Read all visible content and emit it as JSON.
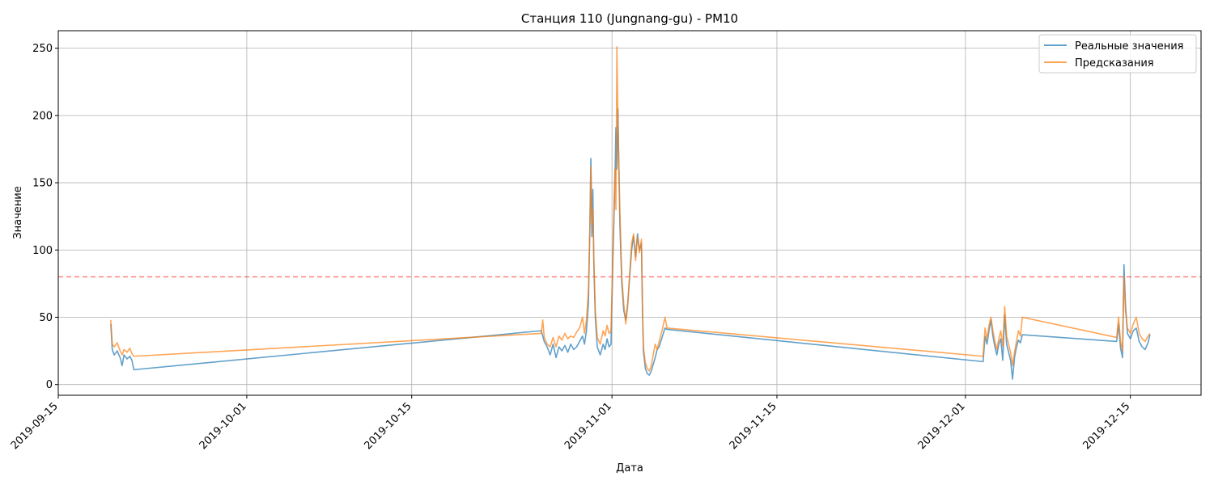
{
  "chart_data": {
    "type": "line",
    "title": "Станция 110 (Jungnang-gu) - PM10",
    "xlabel": "Дата",
    "ylabel": "Значение",
    "xlim": [
      "2019-09-15",
      "2019-12-21"
    ],
    "ylim": [
      -8,
      263
    ],
    "grid": true,
    "legend_position": "top-right",
    "x_ticks": [
      "2019-09-15",
      "2019-10-01",
      "2019-10-15",
      "2019-11-01",
      "2019-11-15",
      "2019-12-01",
      "2019-12-15"
    ],
    "y_ticks": [
      0,
      50,
      100,
      150,
      200,
      250
    ],
    "threshold": {
      "value": 80,
      "color": "#ff0000",
      "style": "dashed"
    },
    "series": [
      {
        "name": "Реальные значения",
        "color": "#1f77b4",
        "points": [
          [
            "2019-09-19T11:00",
            45
          ],
          [
            "2019-09-19T14:00",
            26
          ],
          [
            "2019-09-19T18:00",
            22
          ],
          [
            "2019-09-20T00:00",
            25
          ],
          [
            "2019-09-20T06:00",
            20
          ],
          [
            "2019-09-20T10:00",
            14
          ],
          [
            "2019-09-20T14:00",
            22
          ],
          [
            "2019-09-20T20:00",
            19
          ],
          [
            "2019-09-21T02:00",
            21
          ],
          [
            "2019-09-21T06:00",
            18
          ],
          [
            "2019-09-21T10:00",
            11
          ],
          [
            "2019-10-26T00:00",
            40
          ],
          [
            "2019-10-26T06:00",
            32
          ],
          [
            "2019-10-26T12:00",
            28
          ],
          [
            "2019-10-26T18:00",
            22
          ],
          [
            "2019-10-27T00:00",
            30
          ],
          [
            "2019-10-27T06:00",
            20
          ],
          [
            "2019-10-27T12:00",
            28
          ],
          [
            "2019-10-27T18:00",
            25
          ],
          [
            "2019-10-28T00:00",
            29
          ],
          [
            "2019-10-28T06:00",
            24
          ],
          [
            "2019-10-28T12:00",
            30
          ],
          [
            "2019-10-28T18:00",
            26
          ],
          [
            "2019-10-29T00:00",
            28
          ],
          [
            "2019-10-29T06:00",
            32
          ],
          [
            "2019-10-29T12:00",
            36
          ],
          [
            "2019-10-29T16:00",
            30
          ],
          [
            "2019-10-29T20:00",
            40
          ],
          [
            "2019-10-30T00:00",
            60
          ],
          [
            "2019-10-30T03:00",
            120
          ],
          [
            "2019-10-30T05:00",
            168
          ],
          [
            "2019-10-30T07:00",
            110
          ],
          [
            "2019-10-30T09:00",
            145
          ],
          [
            "2019-10-30T11:00",
            90
          ],
          [
            "2019-10-30T14:00",
            50
          ],
          [
            "2019-10-30T18:00",
            28
          ],
          [
            "2019-10-31T00:00",
            22
          ],
          [
            "2019-10-31T06:00",
            30
          ],
          [
            "2019-10-31T10:00",
            26
          ],
          [
            "2019-10-31T14:00",
            34
          ],
          [
            "2019-10-31T18:00",
            28
          ],
          [
            "2019-10-31T22:00",
            30
          ],
          [
            "2019-11-01T02:00",
            95
          ],
          [
            "2019-11-01T06:00",
            150
          ],
          [
            "2019-11-01T08:00",
            191
          ],
          [
            "2019-11-01T10:00",
            160
          ],
          [
            "2019-11-01T12:00",
            205
          ],
          [
            "2019-11-01T16:00",
            120
          ],
          [
            "2019-11-01T20:00",
            75
          ],
          [
            "2019-11-02T00:00",
            55
          ],
          [
            "2019-11-02T04:00",
            48
          ],
          [
            "2019-11-02T08:00",
            60
          ],
          [
            "2019-11-02T12:00",
            80
          ],
          [
            "2019-11-02T16:00",
            100
          ],
          [
            "2019-11-02T20:00",
            110
          ],
          [
            "2019-11-03T00:00",
            95
          ],
          [
            "2019-11-03T04:00",
            112
          ],
          [
            "2019-11-03T08:00",
            100
          ],
          [
            "2019-11-03T12:00",
            105
          ],
          [
            "2019-11-03T14:00",
            60
          ],
          [
            "2019-11-03T16:00",
            25
          ],
          [
            "2019-11-03T20:00",
            12
          ],
          [
            "2019-11-04T00:00",
            8
          ],
          [
            "2019-11-04T04:00",
            7
          ],
          [
            "2019-11-04T08:00",
            10
          ],
          [
            "2019-11-04T12:00",
            15
          ],
          [
            "2019-11-04T16:00",
            20
          ],
          [
            "2019-11-04T20:00",
            26
          ],
          [
            "2019-11-05T00:00",
            28
          ],
          [
            "2019-11-05T06:00",
            35
          ],
          [
            "2019-11-05T12:00",
            42
          ],
          [
            "2019-11-05T16:00",
            41
          ],
          [
            "2019-12-02T12:00",
            17
          ],
          [
            "2019-12-02T16:00",
            36
          ],
          [
            "2019-12-02T20:00",
            30
          ],
          [
            "2019-12-03T00:00",
            40
          ],
          [
            "2019-12-03T04:00",
            48
          ],
          [
            "2019-12-03T08:00",
            36
          ],
          [
            "2019-12-03T12:00",
            28
          ],
          [
            "2019-12-03T16:00",
            22
          ],
          [
            "2019-12-03T20:00",
            30
          ],
          [
            "2019-12-04T00:00",
            34
          ],
          [
            "2019-12-04T04:00",
            18
          ],
          [
            "2019-12-04T08:00",
            52
          ],
          [
            "2019-12-04T12:00",
            30
          ],
          [
            "2019-12-04T16:00",
            24
          ],
          [
            "2019-12-04T20:00",
            18
          ],
          [
            "2019-12-05T00:00",
            4
          ],
          [
            "2019-12-05T04:00",
            20
          ],
          [
            "2019-12-05T08:00",
            28
          ],
          [
            "2019-12-05T12:00",
            33
          ],
          [
            "2019-12-05T16:00",
            31
          ],
          [
            "2019-12-05T20:00",
            37
          ],
          [
            "2019-12-13T20:00",
            32
          ],
          [
            "2019-12-14T00:00",
            45
          ],
          [
            "2019-12-14T04:00",
            27
          ],
          [
            "2019-12-14T08:00",
            20
          ],
          [
            "2019-12-14T11:00",
            89
          ],
          [
            "2019-12-14T14:00",
            60
          ],
          [
            "2019-12-14T18:00",
            38
          ],
          [
            "2019-12-15T00:00",
            34
          ],
          [
            "2019-12-15T06:00",
            40
          ],
          [
            "2019-12-15T12:00",
            42
          ],
          [
            "2019-12-15T18:00",
            32
          ],
          [
            "2019-12-16T00:00",
            28
          ],
          [
            "2019-12-16T06:00",
            26
          ],
          [
            "2019-12-16T12:00",
            31
          ],
          [
            "2019-12-16T16:00",
            37
          ]
        ]
      },
      {
        "name": "Предсказания",
        "color": "#ff7f0e",
        "points": [
          [
            "2019-09-19T11:00",
            48
          ],
          [
            "2019-09-19T14:00",
            30
          ],
          [
            "2019-09-19T18:00",
            28
          ],
          [
            "2019-09-20T00:00",
            31
          ],
          [
            "2019-09-20T06:00",
            25
          ],
          [
            "2019-09-20T10:00",
            22
          ],
          [
            "2019-09-20T14:00",
            26
          ],
          [
            "2019-09-20T20:00",
            24
          ],
          [
            "2019-09-21T02:00",
            27
          ],
          [
            "2019-09-21T06:00",
            23
          ],
          [
            "2019-09-21T10:00",
            21
          ],
          [
            "2019-10-26T00:00",
            38
          ],
          [
            "2019-10-26T03:00",
            48
          ],
          [
            "2019-10-26T06:00",
            35
          ],
          [
            "2019-10-26T12:00",
            30
          ],
          [
            "2019-10-26T18:00",
            28
          ],
          [
            "2019-10-27T00:00",
            35
          ],
          [
            "2019-10-27T06:00",
            28
          ],
          [
            "2019-10-27T12:00",
            36
          ],
          [
            "2019-10-27T18:00",
            33
          ],
          [
            "2019-10-28T00:00",
            38
          ],
          [
            "2019-10-28T06:00",
            34
          ],
          [
            "2019-10-28T12:00",
            36
          ],
          [
            "2019-10-28T18:00",
            35
          ],
          [
            "2019-10-29T00:00",
            39
          ],
          [
            "2019-10-29T06:00",
            42
          ],
          [
            "2019-10-29T12:00",
            50
          ],
          [
            "2019-10-29T16:00",
            38
          ],
          [
            "2019-10-29T20:00",
            48
          ],
          [
            "2019-10-30T00:00",
            70
          ],
          [
            "2019-10-30T03:00",
            115
          ],
          [
            "2019-10-30T05:00",
            162
          ],
          [
            "2019-10-30T07:00",
            120
          ],
          [
            "2019-10-30T09:00",
            130
          ],
          [
            "2019-10-30T11:00",
            95
          ],
          [
            "2019-10-30T14:00",
            55
          ],
          [
            "2019-10-30T18:00",
            35
          ],
          [
            "2019-10-31T00:00",
            30
          ],
          [
            "2019-10-31T06:00",
            40
          ],
          [
            "2019-10-31T10:00",
            36
          ],
          [
            "2019-10-31T14:00",
            44
          ],
          [
            "2019-10-31T18:00",
            38
          ],
          [
            "2019-10-31T22:00",
            40
          ],
          [
            "2019-11-01T02:00",
            100
          ],
          [
            "2019-11-01T06:00",
            160
          ],
          [
            "2019-11-01T08:00",
            130
          ],
          [
            "2019-11-01T10:00",
            251
          ],
          [
            "2019-11-01T12:00",
            200
          ],
          [
            "2019-11-01T16:00",
            130
          ],
          [
            "2019-11-01T20:00",
            80
          ],
          [
            "2019-11-02T00:00",
            60
          ],
          [
            "2019-11-02T04:00",
            45
          ],
          [
            "2019-11-02T08:00",
            58
          ],
          [
            "2019-11-02T12:00",
            82
          ],
          [
            "2019-11-02T16:00",
            105
          ],
          [
            "2019-11-02T20:00",
            112
          ],
          [
            "2019-11-03T00:00",
            92
          ],
          [
            "2019-11-03T04:00",
            110
          ],
          [
            "2019-11-03T08:00",
            98
          ],
          [
            "2019-11-03T12:00",
            108
          ],
          [
            "2019-11-03T14:00",
            58
          ],
          [
            "2019-11-03T16:00",
            28
          ],
          [
            "2019-11-03T20:00",
            16
          ],
          [
            "2019-11-04T00:00",
            12
          ],
          [
            "2019-11-04T04:00",
            10
          ],
          [
            "2019-11-04T08:00",
            14
          ],
          [
            "2019-11-04T12:00",
            22
          ],
          [
            "2019-11-04T16:00",
            30
          ],
          [
            "2019-11-04T20:00",
            26
          ],
          [
            "2019-11-05T00:00",
            32
          ],
          [
            "2019-11-05T06:00",
            40
          ],
          [
            "2019-11-05T12:00",
            50
          ],
          [
            "2019-11-05T16:00",
            42
          ],
          [
            "2019-12-02T12:00",
            21
          ],
          [
            "2019-12-02T16:00",
            42
          ],
          [
            "2019-12-02T20:00",
            34
          ],
          [
            "2019-12-03T00:00",
            44
          ],
          [
            "2019-12-03T04:00",
            50
          ],
          [
            "2019-12-03T08:00",
            40
          ],
          [
            "2019-12-03T12:00",
            32
          ],
          [
            "2019-12-03T16:00",
            26
          ],
          [
            "2019-12-03T20:00",
            34
          ],
          [
            "2019-12-04T00:00",
            40
          ],
          [
            "2019-12-04T04:00",
            28
          ],
          [
            "2019-12-04T08:00",
            58
          ],
          [
            "2019-12-04T12:00",
            36
          ],
          [
            "2019-12-04T16:00",
            30
          ],
          [
            "2019-12-04T20:00",
            24
          ],
          [
            "2019-12-05T00:00",
            14
          ],
          [
            "2019-12-05T04:00",
            24
          ],
          [
            "2019-12-05T08:00",
            32
          ],
          [
            "2019-12-05T12:00",
            40
          ],
          [
            "2019-12-05T16:00",
            36
          ],
          [
            "2019-12-05T20:00",
            50
          ],
          [
            "2019-12-13T20:00",
            35
          ],
          [
            "2019-12-14T00:00",
            50
          ],
          [
            "2019-12-14T04:00",
            32
          ],
          [
            "2019-12-14T08:00",
            25
          ],
          [
            "2019-12-14T11:00",
            80
          ],
          [
            "2019-12-14T14:00",
            55
          ],
          [
            "2019-12-14T18:00",
            42
          ],
          [
            "2019-12-15T00:00",
            38
          ],
          [
            "2019-12-15T06:00",
            45
          ],
          [
            "2019-12-15T12:00",
            50
          ],
          [
            "2019-12-15T18:00",
            38
          ],
          [
            "2019-12-16T00:00",
            34
          ],
          [
            "2019-12-16T06:00",
            32
          ],
          [
            "2019-12-16T12:00",
            36
          ],
          [
            "2019-12-16T16:00",
            38
          ]
        ]
      }
    ]
  }
}
